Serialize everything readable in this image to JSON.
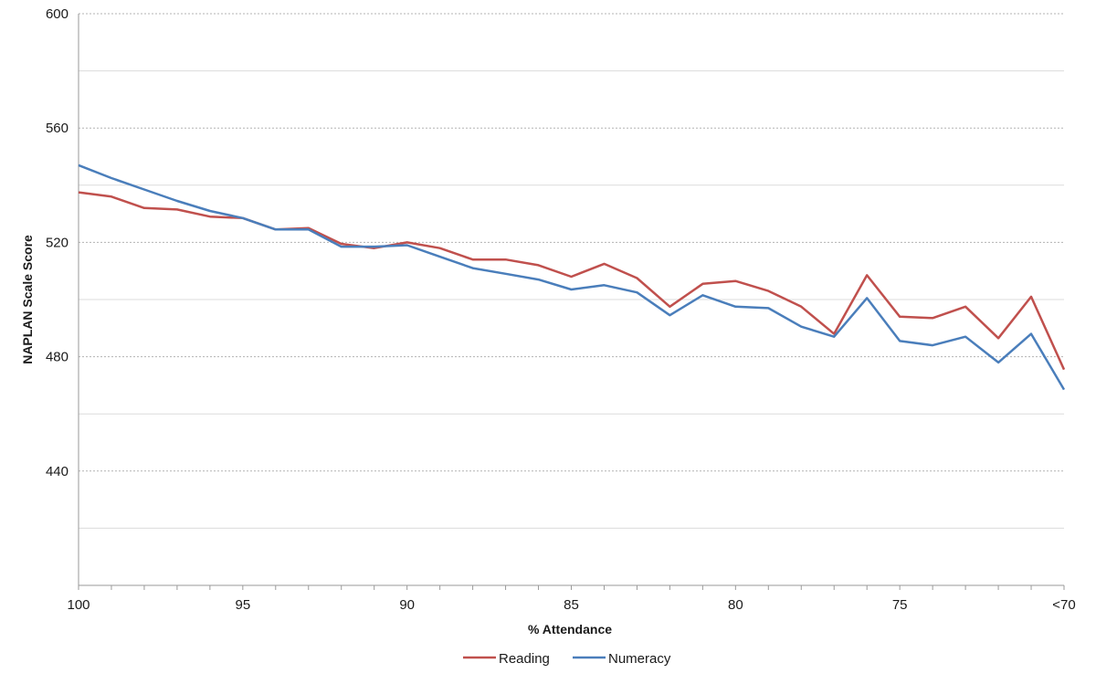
{
  "chart_data": {
    "type": "line",
    "title": "",
    "xlabel": "% Attendance",
    "ylabel": "NAPLAN Scale Score",
    "ylim": [
      400,
      600
    ],
    "y_ticks": [
      600,
      560,
      520,
      480,
      440
    ],
    "x_range": [
      100,
      70
    ],
    "x_tick_labels": [
      {
        "x": 100,
        "label": "100"
      },
      {
        "x": 95,
        "label": "95"
      },
      {
        "x": 90,
        "label": "90"
      },
      {
        "x": 85,
        "label": "85"
      },
      {
        "x": 80,
        "label": "80"
      },
      {
        "x": 75,
        "label": "75"
      },
      {
        "x": 70,
        "label": "<70"
      }
    ],
    "x": [
      100,
      99,
      98,
      97,
      96,
      95,
      94,
      93,
      92,
      91,
      90,
      89,
      88,
      87,
      86,
      85,
      84,
      83,
      82,
      81,
      80,
      79,
      78,
      77,
      76,
      75,
      74,
      73,
      72,
      71,
      70
    ],
    "grid": true,
    "legend_position": "bottom",
    "series": [
      {
        "name": "Reading",
        "color": "#c0504d",
        "values": [
          537.5,
          536,
          532,
          531.5,
          529,
          528.5,
          524.5,
          525,
          519.5,
          518,
          520,
          518,
          514,
          514,
          512,
          508,
          512.5,
          507.5,
          497.5,
          505.5,
          506.5,
          503,
          497.5,
          488,
          508.5,
          494,
          493.5,
          497.5,
          486.5,
          501,
          475.5
        ]
      },
      {
        "name": "Numeracy",
        "color": "#4a7ebb",
        "values": [
          547,
          542.5,
          538.5,
          534.5,
          531,
          528.5,
          524.5,
          524.5,
          518.5,
          518.5,
          519,
          515,
          511,
          509,
          507,
          503.5,
          505,
          502.5,
          494.5,
          501.5,
          497.5,
          497,
          490.5,
          487,
          500.5,
          485.5,
          484,
          487,
          478,
          488,
          468.5
        ]
      }
    ]
  }
}
